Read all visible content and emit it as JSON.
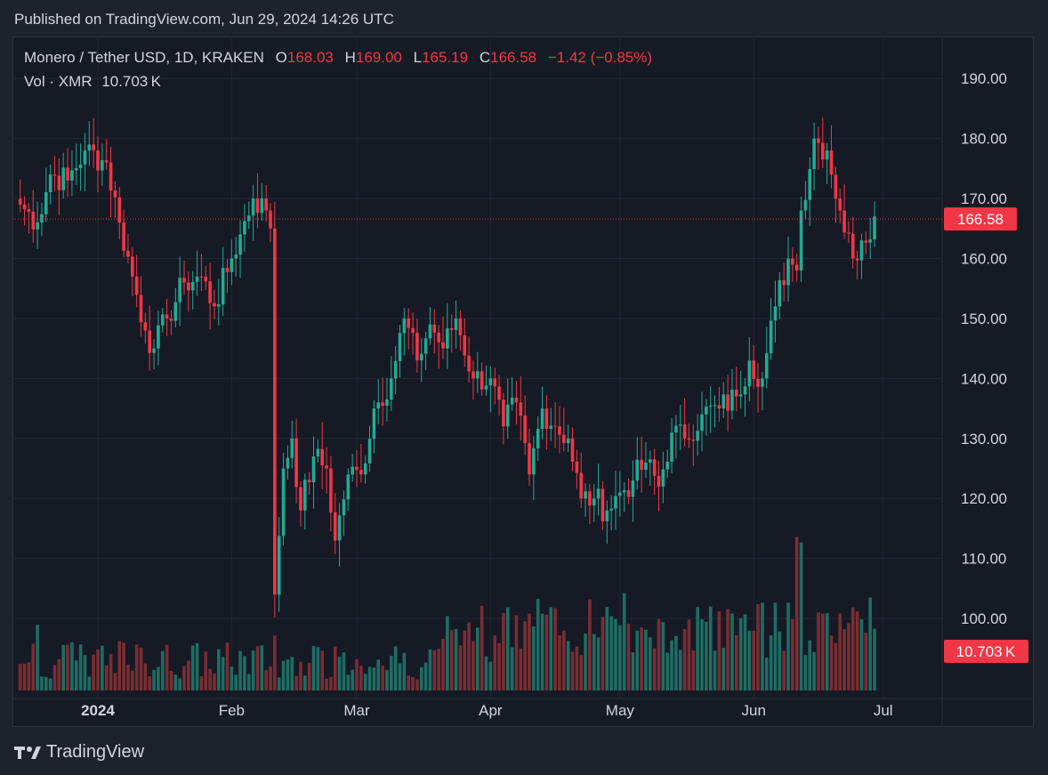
{
  "published": "Published on TradingView.com, Jun 29, 2024 14:26 UTC",
  "legend": {
    "symbol": "Monero / Tether USD, 1D, KRAKEN",
    "o_label": "O",
    "o_value": "168.03",
    "h_label": "H",
    "h_value": "169.00",
    "l_label": "L",
    "l_value": "165.19",
    "c_label": "C",
    "c_value": "166.58",
    "change": "−1.42 (−0.85%)",
    "vol_label": "Vol · XMR",
    "vol_value": "10.703 K"
  },
  "footer": {
    "brand": "TradingView"
  },
  "colors": {
    "up": "#22ab94",
    "down": "#f23645",
    "up_vol": "#1e6d63",
    "down_vol": "#7b2d33",
    "grid": "#232733",
    "background": "#161a25"
  },
  "chart_data": {
    "type": "candlestick",
    "y_ticks": [
      "190.00",
      "180.00",
      "170.00",
      "160.00",
      "150.00",
      "140.00",
      "130.00",
      "120.00",
      "110.00",
      "100.00"
    ],
    "ylim": [
      88,
      193
    ],
    "x_ticks": [
      "2024",
      "Feb",
      "Mar",
      "Apr",
      "May",
      "Jun",
      "Jul"
    ],
    "last_price": "166.58",
    "last_volume": "10.703 K",
    "anchors": [
      [
        "2023-12-14",
        169
      ],
      [
        "2023-12-18",
        166
      ],
      [
        "2023-12-21",
        174
      ],
      [
        "2023-12-25",
        173
      ],
      [
        "2023-12-29",
        178
      ],
      [
        "2024-01-03",
        176
      ],
      [
        "2024-01-06",
        166
      ],
      [
        "2024-01-09",
        157
      ],
      [
        "2024-01-12",
        148
      ],
      [
        "2024-01-14",
        145
      ],
      [
        "2024-01-17",
        150
      ],
      [
        "2024-01-21",
        156
      ],
      [
        "2024-01-25",
        157
      ],
      [
        "2024-01-28",
        152
      ],
      [
        "2024-02-01",
        160
      ],
      [
        "2024-02-03",
        164
      ],
      [
        "2024-02-06",
        170
      ],
      [
        "2024-02-09",
        168
      ],
      [
        "2024-02-10",
        165
      ],
      [
        "2024-02-11",
        104
      ],
      [
        "2024-02-13",
        125
      ],
      [
        "2024-02-15",
        130
      ],
      [
        "2024-02-17",
        118
      ],
      [
        "2024-02-20",
        127
      ],
      [
        "2024-02-23",
        125
      ],
      [
        "2024-02-25",
        113
      ],
      [
        "2024-02-28",
        124
      ],
      [
        "2024-03-02",
        124
      ],
      [
        "2024-03-05",
        135
      ],
      [
        "2024-03-09",
        140
      ],
      [
        "2024-03-12",
        150
      ],
      [
        "2024-03-15",
        143
      ],
      [
        "2024-03-18",
        149
      ],
      [
        "2024-03-21",
        145
      ],
      [
        "2024-03-24",
        150
      ],
      [
        "2024-03-28",
        140
      ],
      [
        "2024-04-01",
        140
      ],
      [
        "2024-04-04",
        132
      ],
      [
        "2024-04-07",
        136
      ],
      [
        "2024-04-10",
        124
      ],
      [
        "2024-04-13",
        135
      ],
      [
        "2024-04-16",
        132
      ],
      [
        "2024-04-19",
        130
      ],
      [
        "2024-04-22",
        120
      ],
      [
        "2024-04-25",
        120
      ],
      [
        "2024-04-28",
        118
      ],
      [
        "2024-05-01",
        121
      ],
      [
        "2024-05-04",
        123
      ],
      [
        "2024-05-07",
        126
      ],
      [
        "2024-05-10",
        122
      ],
      [
        "2024-05-13",
        131
      ],
      [
        "2024-05-16",
        130
      ],
      [
        "2024-05-20",
        134
      ],
      [
        "2024-05-24",
        135
      ],
      [
        "2024-05-28",
        137
      ],
      [
        "2024-05-31",
        143
      ],
      [
        "2024-06-03",
        140
      ],
      [
        "2024-06-06",
        152
      ],
      [
        "2024-06-09",
        160
      ],
      [
        "2024-06-11",
        158
      ],
      [
        "2024-06-12",
        168
      ],
      [
        "2024-06-15",
        180
      ],
      [
        "2024-06-18",
        178
      ],
      [
        "2024-06-21",
        168
      ],
      [
        "2024-06-24",
        160
      ],
      [
        "2024-06-26",
        163
      ],
      [
        "2024-06-29",
        167
      ]
    ],
    "volume_spikes": [
      [
        "2023-12-18",
        12
      ],
      [
        "2024-01-06",
        9
      ],
      [
        "2024-02-11",
        10
      ],
      [
        "2024-02-25",
        8
      ],
      [
        "2024-03-28",
        9
      ],
      [
        "2024-04-10",
        14
      ],
      [
        "2024-04-13",
        14
      ],
      [
        "2024-04-16",
        15
      ],
      [
        "2024-05-10",
        13
      ],
      [
        "2024-05-20",
        13
      ],
      [
        "2024-06-03",
        16
      ],
      [
        "2024-06-06",
        16
      ],
      [
        "2024-06-09",
        16
      ],
      [
        "2024-06-11",
        28
      ],
      [
        "2024-06-12",
        27
      ],
      [
        "2024-06-15",
        7
      ],
      [
        "2024-06-26",
        13
      ]
    ],
    "volume_ylim": [
      0,
      30
    ]
  }
}
